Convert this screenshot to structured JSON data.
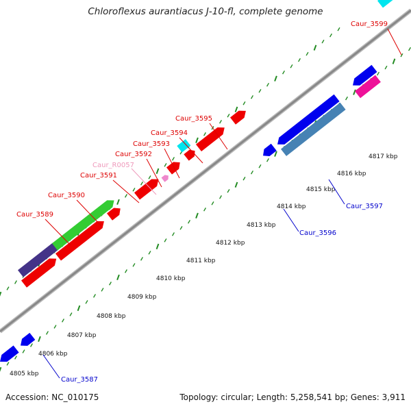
{
  "title": "Chloroflexus aurantiacus J-10-fl, complete genome",
  "footer": {
    "accession": "Accession: NC_010175",
    "summary": "Topology: circular; Length: 5,258,541 bp; Genes: 3,911"
  },
  "colors": {
    "backbone": "#888888",
    "ticks": "#228b22",
    "forward_label": "#dd0000",
    "reverse_label": "#0000cc",
    "rna_label": "#ee99bb"
  },
  "kbp_ticks": [
    "4805 kbp",
    "4806 kbp",
    "4807 kbp",
    "4808 kbp",
    "4809 kbp",
    "4810 kbp",
    "4811 kbp",
    "4812 kbp",
    "4813 kbp",
    "4814 kbp",
    "4815 kbp",
    "4816 kbp",
    "4817 kbp"
  ],
  "forward_gene_labels": [
    "Caur_3589",
    "Caur_3590",
    "Caur_3591",
    "Caur_3592",
    "Caur_3593",
    "Caur_3594",
    "Caur_3595",
    "Caur_3599"
  ],
  "rna_gene_labels": [
    "Caur_R0057"
  ],
  "reverse_gene_labels": [
    "Caur_3587",
    "Caur_3596",
    "Caur_3597"
  ],
  "feature_colors": {
    "forward_cds": "#ee0000",
    "reverse_cds": "#0000ee",
    "green_band": "#33cc33",
    "purple_band": "#443388",
    "cyan_band": "#00e5ee",
    "steel_band": "#4682b4",
    "magenta_band": "#ee1199",
    "rna": "#ee88cc"
  }
}
